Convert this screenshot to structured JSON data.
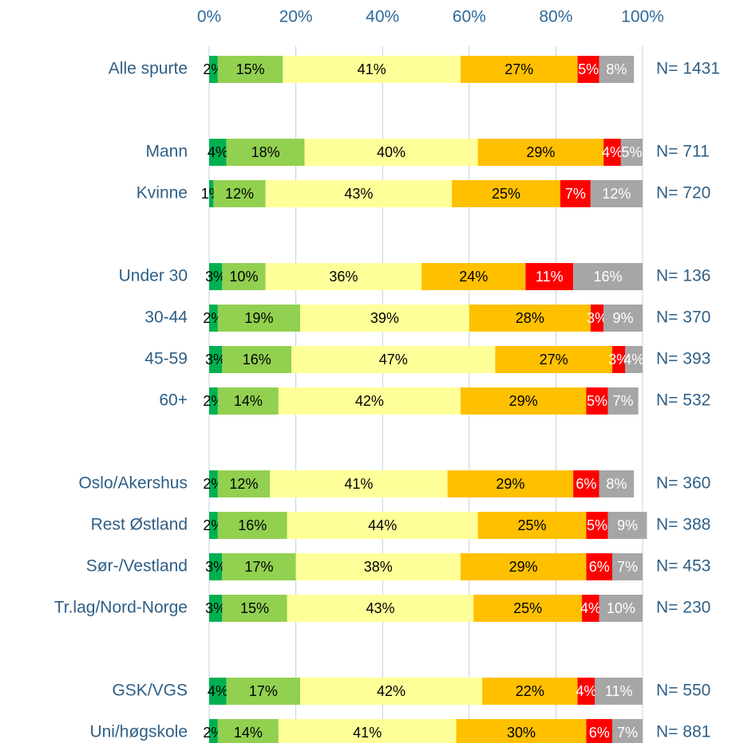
{
  "chart_data": {
    "type": "stacked-bar-horizontal",
    "categories": [
      "Alle spurte",
      null,
      "Mann",
      "Kvinne",
      null,
      "Under 30",
      "30-44",
      "45-59",
      "60+",
      null,
      "Oslo/Akershus",
      "Rest Østland",
      "Sør-/Vestland",
      "Tr.lag/Nord-Norge",
      null,
      "GSK/VGS",
      "Uni/høgskole"
    ],
    "n_labels": [
      "N= 1431",
      null,
      "N= 711",
      "N= 720",
      null,
      "N= 136",
      "N= 370",
      "N= 393",
      "N= 532",
      null,
      "N= 360",
      "N= 388",
      "N= 453",
      "N= 230",
      null,
      "N= 550",
      "N= 881"
    ],
    "series": [
      {
        "color": "#00b050",
        "label_color": "#000000",
        "values": [
          2,
          null,
          4,
          1,
          null,
          3,
          2,
          3,
          2,
          null,
          2,
          2,
          3,
          3,
          null,
          4,
          2
        ],
        "value_labels": [
          "2%",
          null,
          "4%",
          "1%",
          null,
          "3%",
          "2%",
          "3%",
          "2%",
          null,
          "2%",
          "2%",
          "3%",
          "3%",
          null,
          "4%",
          "2%"
        ]
      },
      {
        "color": "#92d050",
        "label_color": "#000000",
        "values": [
          15,
          null,
          18,
          12,
          null,
          10,
          19,
          16,
          14,
          null,
          12,
          16,
          17,
          15,
          null,
          17,
          14
        ],
        "value_labels": [
          "15%",
          null,
          "18%",
          "12%",
          null,
          "10%",
          "19%",
          "16%",
          "14%",
          null,
          "12%",
          "16%",
          "17%",
          "15%",
          null,
          "17%",
          "14%"
        ]
      },
      {
        "color": "#ffff99",
        "label_color": "#000000",
        "values": [
          41,
          null,
          40,
          43,
          null,
          36,
          39,
          47,
          42,
          null,
          41,
          44,
          38,
          43,
          null,
          42,
          41
        ],
        "value_labels": [
          "41%",
          null,
          "40%",
          "43%",
          null,
          "36%",
          "39%",
          "47%",
          "42%",
          null,
          "41%",
          "44%",
          "38%",
          "43%",
          null,
          "42%",
          "41%"
        ]
      },
      {
        "color": "#ffc000",
        "label_color": "#000000",
        "values": [
          27,
          null,
          29,
          25,
          null,
          24,
          28,
          27,
          29,
          null,
          29,
          25,
          29,
          25,
          null,
          22,
          30
        ],
        "value_labels": [
          "27%",
          null,
          "29%",
          "25%",
          null,
          "24%",
          "28%",
          "27%",
          "29%",
          null,
          "29%",
          "25%",
          "29%",
          "25%",
          null,
          "22%",
          "30%"
        ]
      },
      {
        "color": "#ff0000",
        "label_color": "#ffffff",
        "values": [
          5,
          null,
          4,
          7,
          null,
          11,
          3,
          3,
          5,
          null,
          6,
          5,
          6,
          4,
          null,
          4,
          6
        ],
        "value_labels": [
          "5%",
          null,
          "4%",
          "7%",
          null,
          "11%",
          "3%",
          "3%",
          "5%",
          null,
          "6%",
          "5%",
          "6%",
          "4%",
          null,
          "4%",
          "6%"
        ]
      },
      {
        "color": "#a6a6a6",
        "label_color": "#ffffff",
        "values": [
          8,
          null,
          5,
          12,
          null,
          16,
          9,
          4,
          7,
          null,
          8,
          9,
          7,
          10,
          null,
          11,
          7
        ],
        "value_labels": [
          "8%",
          null,
          "5%",
          "12%",
          null,
          "16%",
          "9%",
          "4%",
          "7%",
          null,
          "8%",
          "9%",
          "7%",
          "10%",
          null,
          "11%",
          "7%"
        ]
      }
    ],
    "xlim": [
      0,
      100
    ],
    "xticks": [
      {
        "value": 0,
        "label": "0%"
      },
      {
        "value": 20,
        "label": "20%"
      },
      {
        "value": 40,
        "label": "40%"
      },
      {
        "value": 60,
        "label": "60%"
      },
      {
        "value": 80,
        "label": "80%"
      },
      {
        "value": 100,
        "label": "100%"
      }
    ],
    "grid": true
  }
}
